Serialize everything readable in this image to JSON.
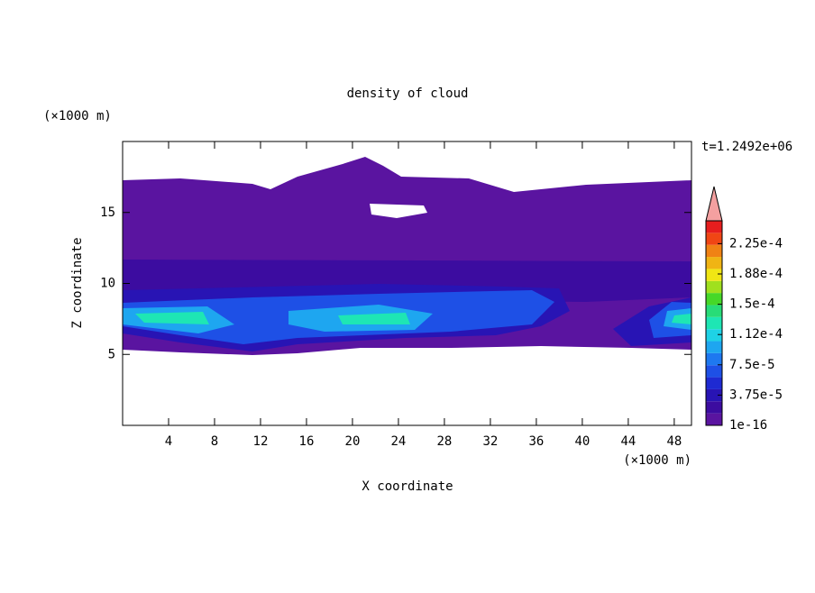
{
  "chart_data": {
    "type": "contour",
    "title": "density of cloud",
    "xlabel": "X coordinate",
    "ylabel": "Z coordinate",
    "xunit": "(×1000 m)",
    "yunit": "(×1000 m)",
    "annotation": "t=1.2492e+06",
    "xlim": [
      0,
      49.5
    ],
    "ylim": [
      0,
      20
    ],
    "xticks": [
      4,
      8,
      12,
      16,
      20,
      24,
      28,
      32,
      36,
      40,
      44,
      48
    ],
    "yticks": [
      5,
      10,
      15
    ],
    "colorbar": {
      "ticks": [
        {
          "value": 1e-16,
          "label": "1e-16"
        },
        {
          "value": 3.75e-05,
          "label": "3.75e-5"
        },
        {
          "value": 7.5e-05,
          "label": "7.5e-5"
        },
        {
          "value": 0.000112,
          "label": "1.12e-4"
        },
        {
          "value": 0.00015,
          "label": "1.5e-4"
        },
        {
          "value": 0.000188,
          "label": "1.88e-4"
        },
        {
          "value": 0.000225,
          "label": "2.25e-4"
        }
      ],
      "colors": [
        "#5a14a0",
        "#3c0ca0",
        "#2814b4",
        "#1e2ad2",
        "#1e50e6",
        "#1e78f0",
        "#1ea6f0",
        "#1ed2e6",
        "#1ee6b4",
        "#28dc78",
        "#46d828",
        "#a0e01e",
        "#f0e614",
        "#f0b414",
        "#f08214",
        "#f04614",
        "#e61e1e"
      ],
      "extend_color": "#f4a0a0"
    }
  }
}
